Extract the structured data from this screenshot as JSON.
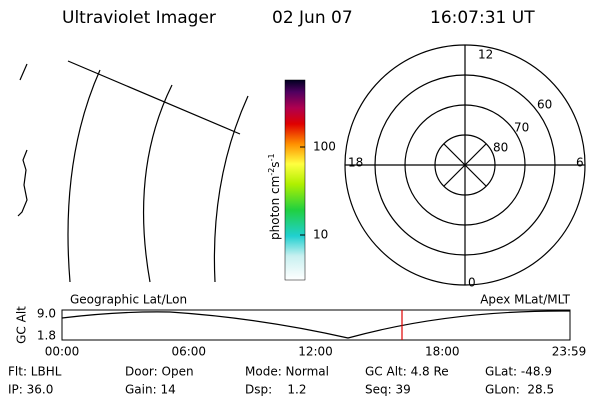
{
  "header": {
    "title": "Ultraviolet Imager",
    "date": "02 Jun 07",
    "time": "16:07:31 UT"
  },
  "colorbar": {
    "label": "photon cm",
    "exp1": "-2",
    "unit2": "s",
    "exp2": "-1",
    "ticks": [
      "100",
      "10"
    ]
  },
  "polar": {
    "mlt_labels": [
      "12",
      "18",
      "6",
      "0"
    ],
    "lat_labels": [
      "60",
      "70",
      "80"
    ]
  },
  "orbit": {
    "left_label": "Geographic Lat/Lon",
    "right_label": "Apex MLat/MLT",
    "y_label": "GC Alt",
    "y_ticks": [
      "9.0",
      "1.8"
    ],
    "x_ticks": [
      "00:00",
      "06:00",
      "12:00",
      "18:00",
      "23:59"
    ]
  },
  "info": [
    [
      "Flt: LBHL",
      "Door: Open",
      "Mode: Normal",
      "GC Alt: 4.8 Re",
      "GLat: -48.9"
    ],
    [
      "IP: 36.0",
      "Gain: 14",
      "Dsp:    1.2",
      "Seq: 39",
      "GLon:  28.5"
    ]
  ]
}
